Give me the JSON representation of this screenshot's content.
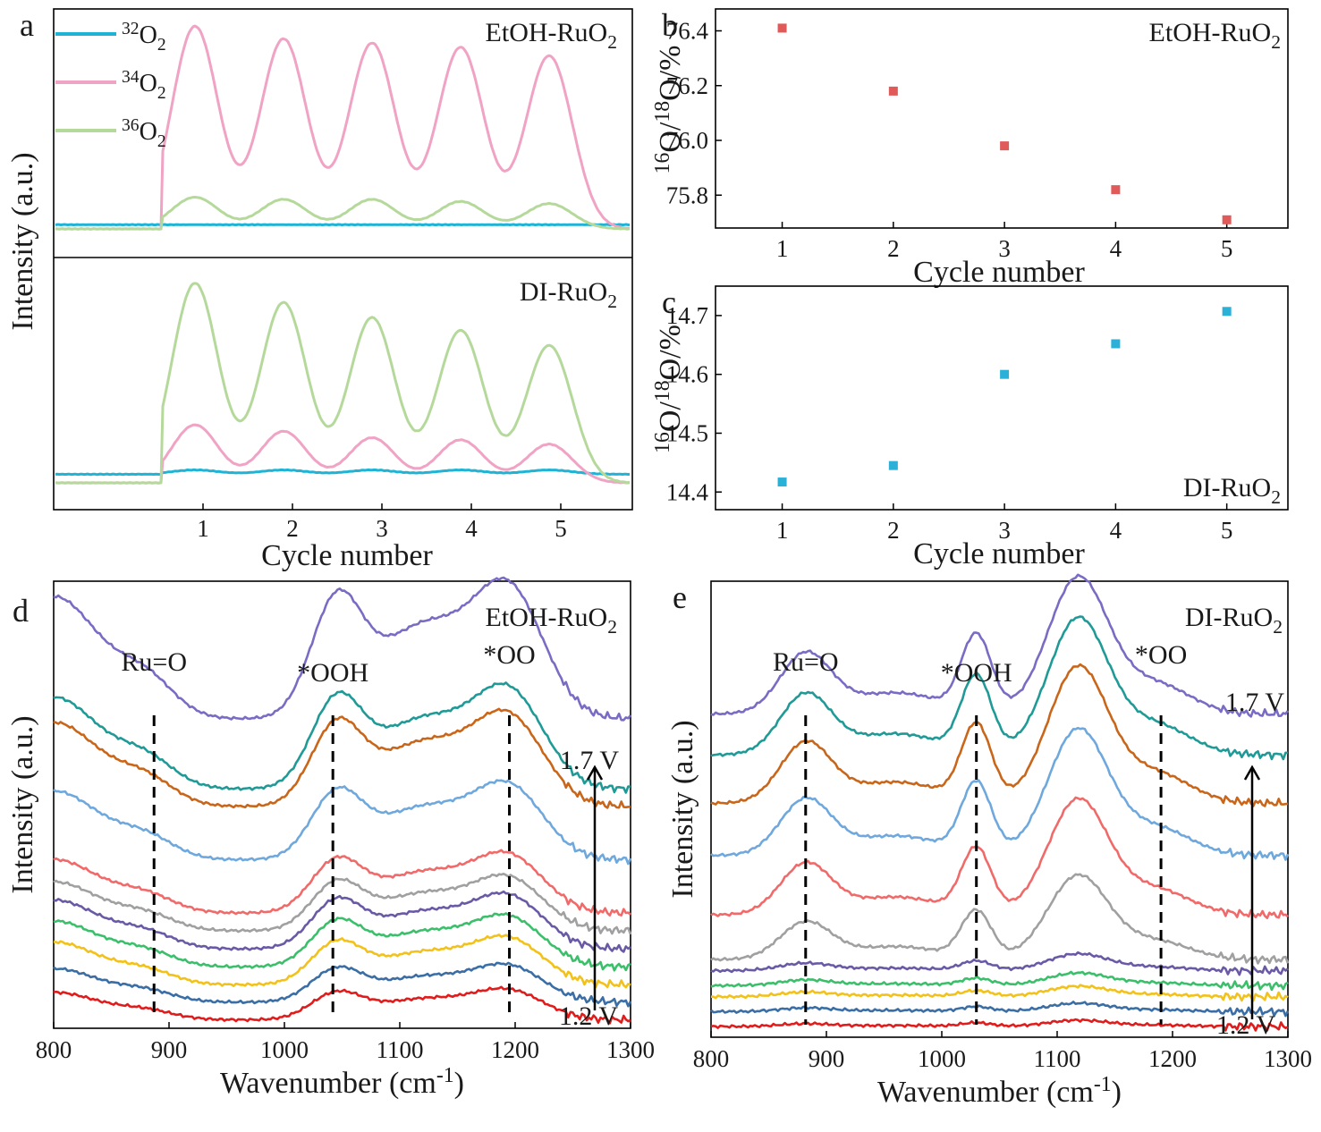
{
  "figure": {
    "panel_letters": [
      "a",
      "b",
      "c",
      "d",
      "e"
    ]
  },
  "chart_data": [
    {
      "id": "a",
      "type": "line",
      "xlabel": "Cycle number",
      "ylabel": "Intensity (a.u.)",
      "x_ticks": [
        "1",
        "2",
        "3",
        "4",
        "5"
      ],
      "legend": [
        {
          "name": "32O2",
          "sup": "32",
          "base": "O",
          "sub": "2",
          "color": "#1fb3d6"
        },
        {
          "name": "34O2",
          "sup": "34",
          "base": "O",
          "sub": "2",
          "color": "#f0a3c4"
        },
        {
          "name": "36O2",
          "sup": "36",
          "base": "O",
          "sub": "2",
          "color": "#b5d99b"
        }
      ],
      "subplots": [
        {
          "sample": {
            "base": "EtOH-RuO",
            "sub": "2"
          },
          "peak_centers": [
            0.95,
            1.9,
            2.85,
            3.85,
            4.85
          ],
          "series": [
            {
              "name": "32O2",
              "color": "#1fb3d6",
              "baseline": 0.02,
              "peaks": [
                0,
                0,
                0,
                0,
                0
              ]
            },
            {
              "name": "34O2",
              "color": "#f0a3c4",
              "baseline": 0.0,
              "peaks": [
                0.96,
                0.9,
                0.88,
                0.86,
                0.82
              ]
            },
            {
              "name": "36O2",
              "color": "#b5d99b",
              "baseline": 0.0,
              "peaks": [
                0.15,
                0.14,
                0.14,
                0.13,
                0.12
              ]
            }
          ]
        },
        {
          "sample": {
            "base": "DI-RuO",
            "sub": "2"
          },
          "peak_centers": [
            0.95,
            1.9,
            2.85,
            3.85,
            4.85
          ],
          "series": [
            {
              "name": "32O2",
              "color": "#1fb3d6",
              "baseline": 0.04,
              "peaks": [
                0.02,
                0.02,
                0.02,
                0.02,
                0.02
              ]
            },
            {
              "name": "34O2",
              "color": "#f0a3c4",
              "baseline": 0.0,
              "peaks": [
                0.27,
                0.24,
                0.21,
                0.2,
                0.18
              ]
            },
            {
              "name": "36O2",
              "color": "#b5d99b",
              "baseline": 0.0,
              "peaks": [
                0.93,
                0.84,
                0.77,
                0.71,
                0.64
              ]
            }
          ]
        }
      ]
    },
    {
      "id": "b",
      "type": "scatter",
      "xlabel": "Cycle number",
      "ylabel": {
        "sup1": "16",
        "mid": "O/",
        "sup2": "18",
        "end": "O/%"
      },
      "sample": {
        "base": "EtOH-RuO",
        "sub": "2"
      },
      "x": [
        1,
        2,
        3,
        4,
        5
      ],
      "y": [
        76.41,
        76.18,
        75.98,
        75.82,
        75.71
      ],
      "ylim": [
        75.68,
        76.48
      ],
      "xlim": [
        0.4,
        5.55
      ],
      "y_ticks": [
        75.8,
        76.0,
        76.2,
        76.4
      ],
      "y_tick_labels": [
        "75.8",
        "76.0",
        "76.2",
        "76.4"
      ],
      "x_ticks": [
        "1",
        "2",
        "3",
        "4",
        "5"
      ],
      "marker_color": "#e05a5a"
    },
    {
      "id": "c",
      "type": "scatter",
      "xlabel": "Cycle number",
      "ylabel": {
        "sup1": "16",
        "mid": "O/",
        "sup2": "18",
        "end": "O/%"
      },
      "sample": {
        "base": "DI-RuO",
        "sub": "2"
      },
      "x": [
        1,
        2,
        3,
        4,
        5
      ],
      "y": [
        14.417,
        14.445,
        14.6,
        14.652,
        14.707
      ],
      "ylim": [
        14.37,
        14.75
      ],
      "xlim": [
        0.4,
        5.55
      ],
      "y_ticks": [
        14.4,
        14.5,
        14.6,
        14.7
      ],
      "y_tick_labels": [
        "14.4",
        "14.5",
        "14.6",
        "14.7"
      ],
      "x_ticks": [
        "1",
        "2",
        "3",
        "4",
        "5"
      ],
      "marker_color": "#2bb0d8"
    },
    {
      "id": "d",
      "type": "line",
      "xlabel": "Wavenumber (cm-1)",
      "xlabel_parts": {
        "base": "Wavenumber (cm",
        "sup": "-1",
        "end": ")"
      },
      "ylabel": "Intensity (a.u.)",
      "sample": {
        "base": "EtOH-RuO",
        "sub": "2"
      },
      "xlim": [
        800,
        1300
      ],
      "x_ticks": [
        800,
        900,
        1000,
        1100,
        1200,
        1300
      ],
      "x_tick_labels": [
        "800",
        "900",
        "1000",
        "1100",
        "1200",
        "1300"
      ],
      "annotations": [
        {
          "label": "Ru=O",
          "x": 887
        },
        {
          "label": "*OOH",
          "x": 1042
        },
        {
          "label": "*OO",
          "x": 1195
        }
      ],
      "voltage_labels": {
        "high": "1.7 V",
        "low": "1.2 V"
      },
      "series": [
        {
          "color": "#e01c1c",
          "offset": 0.0,
          "scale": 0.18
        },
        {
          "color": "#3a6ea5",
          "offset": 0.05,
          "scale": 0.22
        },
        {
          "color": "#f2c21b",
          "offset": 0.1,
          "scale": 0.28
        },
        {
          "color": "#3cbf6b",
          "offset": 0.15,
          "scale": 0.3
        },
        {
          "color": "#6a5aa6",
          "offset": 0.2,
          "scale": 0.32
        },
        {
          "color": "#a0a0a0",
          "offset": 0.25,
          "scale": 0.32
        },
        {
          "color": "#f06a6a",
          "offset": 0.3,
          "scale": 0.35
        },
        {
          "color": "#6fa8dc",
          "offset": 0.45,
          "scale": 0.45
        },
        {
          "color": "#c9661a",
          "offset": 0.6,
          "scale": 0.55
        },
        {
          "color": "#1f9a96",
          "offset": 0.65,
          "scale": 0.6
        },
        {
          "color": "#7a6cc4",
          "offset": 0.85,
          "scale": 0.8
        }
      ]
    },
    {
      "id": "e",
      "type": "line",
      "xlabel": "Wavenumber (cm-1)",
      "xlabel_parts": {
        "base": "Wavenumber (cm",
        "sup": "-1",
        "end": ")"
      },
      "ylabel": "Intensity (a.u.)",
      "sample": {
        "base": "DI-RuO",
        "sub": "2"
      },
      "xlim": [
        800,
        1300
      ],
      "x_ticks": [
        800,
        900,
        1000,
        1100,
        1200,
        1300
      ],
      "x_tick_labels": [
        "800",
        "900",
        "1000",
        "1100",
        "1200",
        "1300"
      ],
      "annotations": [
        {
          "label": "Ru=O",
          "x": 882
        },
        {
          "label": "*OOH",
          "x": 1030
        },
        {
          "label": "*OO",
          "x": 1190
        }
      ],
      "voltage_labels": {
        "high": "1.7 V",
        "low": "1.2 V"
      },
      "series": [
        {
          "color": "#e01c1c",
          "offset": 0.0,
          "scale": 0.03
        },
        {
          "color": "#3a6ea5",
          "offset": 0.04,
          "scale": 0.04
        },
        {
          "color": "#f2c21b",
          "offset": 0.08,
          "scale": 0.05
        },
        {
          "color": "#3cbf6b",
          "offset": 0.11,
          "scale": 0.06
        },
        {
          "color": "#6a5aa6",
          "offset": 0.15,
          "scale": 0.08
        },
        {
          "color": "#a0a0a0",
          "offset": 0.18,
          "scale": 0.4
        },
        {
          "color": "#f06a6a",
          "offset": 0.3,
          "scale": 0.55
        },
        {
          "color": "#6fa8dc",
          "offset": 0.46,
          "scale": 0.6
        },
        {
          "color": "#c9661a",
          "offset": 0.6,
          "scale": 0.65
        },
        {
          "color": "#1f9a96",
          "offset": 0.73,
          "scale": 0.65
        },
        {
          "color": "#7a6cc4",
          "offset": 0.84,
          "scale": 0.65
        }
      ]
    }
  ]
}
